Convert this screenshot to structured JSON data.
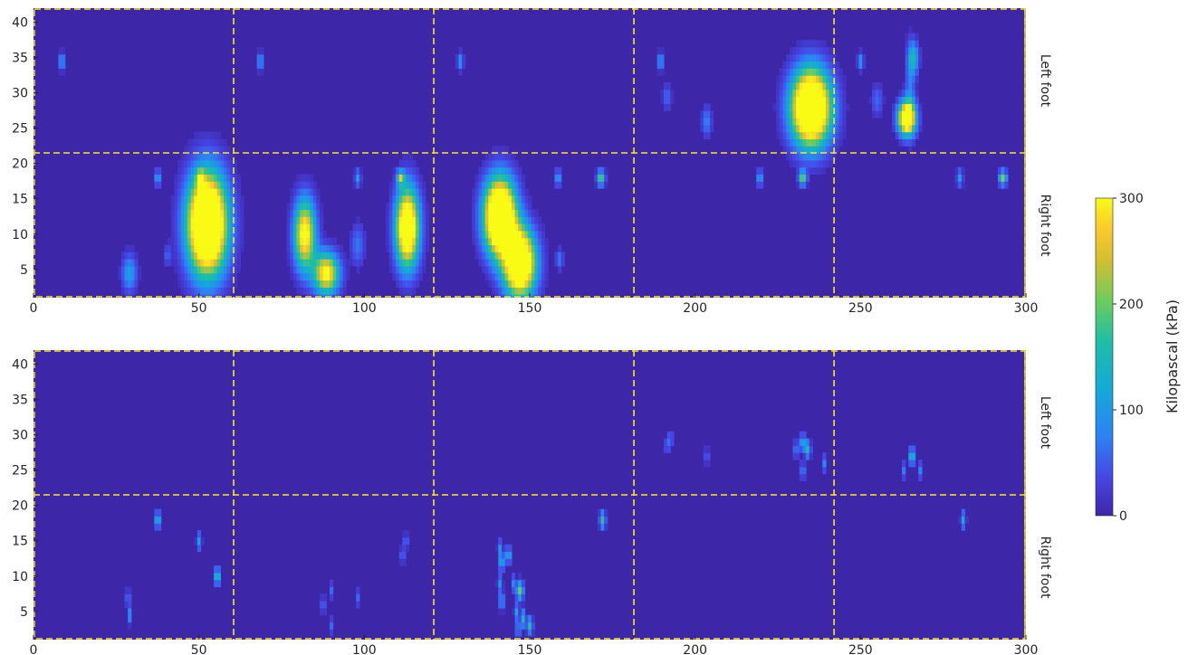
{
  "colors": {
    "background": "#3e26a8",
    "divider": "#f5e91c",
    "axis_text": "#262626"
  },
  "colorbar": {
    "label": "Kilopascal (kPa)",
    "ticks": [
      "0",
      "100",
      "200",
      "300"
    ],
    "range": [
      0,
      300
    ],
    "colormap": "parula"
  },
  "chart_data": [
    {
      "type": "heatmap",
      "panel": "top",
      "x_ticks": [
        "0",
        "50",
        "100",
        "150",
        "200",
        "250",
        "300"
      ],
      "y_ticks": [
        "5",
        "10",
        "15",
        "20",
        "25",
        "30",
        "35",
        "40"
      ],
      "xlim": [
        0,
        300
      ],
      "ylim": [
        1,
        42
      ],
      "row_labels": [
        "Left foot",
        "Right foot"
      ],
      "vertical_dividers_x": [
        60.5,
        121,
        181.5,
        242,
        302.5
      ],
      "horizontal_divider_y": 21.5,
      "blobs": [
        {
          "x": 8.5,
          "y": 34.5,
          "sx": 0.6,
          "sy": 0.8,
          "v": 110
        },
        {
          "x": 68.5,
          "y": 34.5,
          "sx": 0.6,
          "sy": 0.8,
          "v": 110
        },
        {
          "x": 129,
          "y": 34.5,
          "sx": 0.6,
          "sy": 0.8,
          "v": 110
        },
        {
          "x": 189.5,
          "y": 34.5,
          "sx": 0.6,
          "sy": 0.8,
          "v": 110
        },
        {
          "x": 250,
          "y": 34.5,
          "sx": 0.6,
          "sy": 0.8,
          "v": 110
        },
        {
          "x": 191.5,
          "y": 29.5,
          "sx": 0.9,
          "sy": 1.2,
          "v": 60
        },
        {
          "x": 203.5,
          "y": 26,
          "sx": 1.0,
          "sy": 1.4,
          "v": 80
        },
        {
          "x": 235,
          "y": 28,
          "sx": 4.0,
          "sy": 3.6,
          "v": 540
        },
        {
          "x": 255,
          "y": 29,
          "sx": 1.2,
          "sy": 1.5,
          "v": 60
        },
        {
          "x": 265,
          "y": 31,
          "sx": 1.0,
          "sy": 4.0,
          "v": 70
        },
        {
          "x": 266,
          "y": 35,
          "sx": 1.1,
          "sy": 1.6,
          "v": 130
        },
        {
          "x": 264,
          "y": 26.5,
          "sx": 1.8,
          "sy": 1.6,
          "v": 440
        },
        {
          "x": 37.5,
          "y": 18,
          "sx": 0.6,
          "sy": 0.8,
          "v": 110
        },
        {
          "x": 50.5,
          "y": 18,
          "sx": 0.8,
          "sy": 0.7,
          "v": 210
        },
        {
          "x": 52.5,
          "y": 11.5,
          "sx": 4.0,
          "sy": 4.8,
          "v": 560
        },
        {
          "x": 29,
          "y": 4.5,
          "sx": 1.5,
          "sy": 1.8,
          "v": 110
        },
        {
          "x": 40.5,
          "y": 7,
          "sx": 0.7,
          "sy": 1.0,
          "v": 60
        },
        {
          "x": 98,
          "y": 18,
          "sx": 0.6,
          "sy": 0.8,
          "v": 110
        },
        {
          "x": 111,
          "y": 18,
          "sx": 0.8,
          "sy": 0.7,
          "v": 210
        },
        {
          "x": 82,
          "y": 10,
          "sx": 2.2,
          "sy": 3.4,
          "v": 330
        },
        {
          "x": 88.5,
          "y": 4.5,
          "sx": 2.6,
          "sy": 2.0,
          "v": 320
        },
        {
          "x": 98,
          "y": 8.5,
          "sx": 1.4,
          "sy": 2.0,
          "v": 70
        },
        {
          "x": 113,
          "y": 11,
          "sx": 2.4,
          "sy": 3.8,
          "v": 430
        },
        {
          "x": 158.5,
          "y": 18,
          "sx": 0.6,
          "sy": 0.8,
          "v": 110
        },
        {
          "x": 171.5,
          "y": 18,
          "sx": 0.8,
          "sy": 0.7,
          "v": 210
        },
        {
          "x": 141,
          "y": 12.5,
          "sx": 3.2,
          "sy": 3.6,
          "v": 560
        },
        {
          "x": 147,
          "y": 6,
          "sx": 3.2,
          "sy": 3.2,
          "v": 500
        },
        {
          "x": 159,
          "y": 6.5,
          "sx": 0.8,
          "sy": 1.0,
          "v": 70
        },
        {
          "x": 219.5,
          "y": 18,
          "sx": 0.6,
          "sy": 0.8,
          "v": 110
        },
        {
          "x": 232.5,
          "y": 18,
          "sx": 0.8,
          "sy": 0.7,
          "v": 210
        },
        {
          "x": 280,
          "y": 18,
          "sx": 0.6,
          "sy": 0.8,
          "v": 110
        },
        {
          "x": 293,
          "y": 18,
          "sx": 0.8,
          "sy": 0.7,
          "v": 210
        }
      ]
    },
    {
      "type": "heatmap",
      "panel": "bottom",
      "x_ticks": [
        "0",
        "50",
        "100",
        "150",
        "200",
        "250",
        "300"
      ],
      "y_ticks": [
        "5",
        "10",
        "15",
        "20",
        "25",
        "30",
        "35",
        "40"
      ],
      "xlim": [
        0,
        300
      ],
      "ylim": [
        1,
        42
      ],
      "row_labels": [
        "Left foot",
        "Right foot"
      ],
      "vertical_dividers_x": [
        60.5,
        121,
        181.5,
        242,
        302.5
      ],
      "horizontal_divider_y": 21.5,
      "blobs": [
        {
          "x": 192.5,
          "y": 29.5,
          "sx": 0.5,
          "sy": 0.8,
          "v": 70
        },
        {
          "x": 191.5,
          "y": 28.5,
          "sx": 0.5,
          "sy": 0.8,
          "v": 60
        },
        {
          "x": 203.5,
          "y": 27,
          "sx": 0.5,
          "sy": 0.8,
          "v": 60
        },
        {
          "x": 230.5,
          "y": 28,
          "sx": 0.5,
          "sy": 0.8,
          "v": 90
        },
        {
          "x": 232.5,
          "y": 29,
          "sx": 0.6,
          "sy": 0.8,
          "v": 130
        },
        {
          "x": 234,
          "y": 28,
          "sx": 0.6,
          "sy": 0.8,
          "v": 150
        },
        {
          "x": 232.5,
          "y": 25,
          "sx": 0.5,
          "sy": 0.8,
          "v": 90
        },
        {
          "x": 239,
          "y": 26,
          "sx": 0.5,
          "sy": 0.8,
          "v": 80
        },
        {
          "x": 263,
          "y": 25,
          "sx": 0.5,
          "sy": 0.8,
          "v": 70
        },
        {
          "x": 265.5,
          "y": 27,
          "sx": 0.6,
          "sy": 0.8,
          "v": 160
        },
        {
          "x": 268,
          "y": 25,
          "sx": 0.5,
          "sy": 0.8,
          "v": 80
        },
        {
          "x": 37.5,
          "y": 18,
          "sx": 0.6,
          "sy": 0.8,
          "v": 140
        },
        {
          "x": 50,
          "y": 15,
          "sx": 0.5,
          "sy": 0.8,
          "v": 110
        },
        {
          "x": 55.5,
          "y": 10,
          "sx": 0.6,
          "sy": 0.8,
          "v": 170
        },
        {
          "x": 28.5,
          "y": 7,
          "sx": 0.5,
          "sy": 0.8,
          "v": 70
        },
        {
          "x": 29,
          "y": 4.5,
          "sx": 0.5,
          "sy": 0.8,
          "v": 90
        },
        {
          "x": 112.5,
          "y": 15,
          "sx": 0.5,
          "sy": 0.7,
          "v": 70
        },
        {
          "x": 111.5,
          "y": 13,
          "sx": 0.5,
          "sy": 0.7,
          "v": 70
        },
        {
          "x": 87.5,
          "y": 6,
          "sx": 0.5,
          "sy": 0.8,
          "v": 70
        },
        {
          "x": 90,
          "y": 8,
          "sx": 0.5,
          "sy": 0.8,
          "v": 60
        },
        {
          "x": 98,
          "y": 7,
          "sx": 0.5,
          "sy": 0.8,
          "v": 60
        },
        {
          "x": 90,
          "y": 3,
          "sx": 0.5,
          "sy": 0.8,
          "v": 60
        },
        {
          "x": 172,
          "y": 18,
          "sx": 0.6,
          "sy": 0.8,
          "v": 170
        },
        {
          "x": 141,
          "y": 14,
          "sx": 0.5,
          "sy": 0.8,
          "v": 90
        },
        {
          "x": 143.5,
          "y": 13,
          "sx": 0.6,
          "sy": 0.8,
          "v": 130
        },
        {
          "x": 141.5,
          "y": 12,
          "sx": 0.5,
          "sy": 0.8,
          "v": 150
        },
        {
          "x": 141,
          "y": 9,
          "sx": 0.5,
          "sy": 0.8,
          "v": 100
        },
        {
          "x": 145,
          "y": 9,
          "sx": 0.5,
          "sy": 0.8,
          "v": 80
        },
        {
          "x": 147,
          "y": 8,
          "sx": 0.7,
          "sy": 0.9,
          "v": 200
        },
        {
          "x": 141.5,
          "y": 6.5,
          "sx": 0.5,
          "sy": 0.8,
          "v": 120
        },
        {
          "x": 146,
          "y": 5,
          "sx": 0.5,
          "sy": 0.8,
          "v": 110
        },
        {
          "x": 148,
          "y": 4,
          "sx": 0.5,
          "sy": 0.8,
          "v": 150
        },
        {
          "x": 150,
          "y": 3,
          "sx": 0.6,
          "sy": 0.8,
          "v": 160
        },
        {
          "x": 146.5,
          "y": 2.5,
          "sx": 0.5,
          "sy": 0.8,
          "v": 100
        },
        {
          "x": 281,
          "y": 18,
          "sx": 0.5,
          "sy": 0.8,
          "v": 120
        }
      ]
    }
  ]
}
